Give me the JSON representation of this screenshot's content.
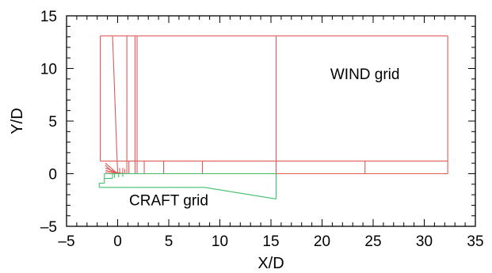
{
  "figure": {
    "xlabel": "X/D",
    "ylabel": "Y/D",
    "xlim": [
      -5,
      35
    ],
    "ylim": [
      -5,
      15
    ],
    "x_major_ticks": [
      -5,
      0,
      5,
      10,
      15,
      20,
      25,
      30,
      35
    ],
    "y_major_ticks": [
      -5,
      0,
      5,
      10,
      15
    ],
    "x_minor_step": 1,
    "y_minor_step": 1,
    "x_tick_labels": [
      "–5",
      "0",
      "5",
      "10",
      "15",
      "20",
      "25",
      "30",
      "35"
    ],
    "y_tick_labels": [
      "–5",
      "0",
      "5",
      "10",
      "15"
    ],
    "grid": false,
    "annotations": [
      {
        "text": "WIND grid",
        "x": 24.2,
        "y": 9.0,
        "color": "#000000"
      },
      {
        "text": "CRAFT grid",
        "x": 5.0,
        "y": -3.0,
        "color": "#000000"
      }
    ],
    "wind_grid": {
      "color": "#e05a5a",
      "segments": [
        [
          [
            -1.7,
            1.2
          ],
          [
            -1.7,
            13.1
          ]
        ],
        [
          [
            -1.7,
            13.1
          ],
          [
            32.3,
            13.1
          ]
        ],
        [
          [
            32.3,
            13.1
          ],
          [
            32.3,
            0
          ]
        ],
        [
          [
            -1.7,
            1.2
          ],
          [
            32.3,
            1.2
          ]
        ],
        [
          [
            -1.2,
            0
          ],
          [
            32.3,
            0
          ]
        ],
        [
          [
            15.5,
            13.1
          ],
          [
            15.5,
            0
          ]
        ],
        [
          [
            24.2,
            1.2
          ],
          [
            24.2,
            0
          ]
        ],
        [
          [
            8.3,
            1.2
          ],
          [
            8.3,
            0
          ]
        ],
        [
          [
            4.5,
            1.2
          ],
          [
            4.5,
            0
          ]
        ],
        [
          [
            2.6,
            1.2
          ],
          [
            2.6,
            0
          ]
        ],
        [
          [
            1.9,
            13.1
          ],
          [
            1.9,
            0
          ]
        ],
        [
          [
            1.7,
            13.1
          ],
          [
            1.7,
            0
          ]
        ],
        [
          [
            0.9,
            13.1
          ],
          [
            0.9,
            0
          ]
        ],
        [
          [
            1.1,
            1.2
          ],
          [
            1.1,
            0
          ]
        ],
        [
          [
            -0.5,
            13.1
          ],
          [
            0,
            0
          ]
        ],
        [
          [
            -1.2,
            1.0
          ],
          [
            0,
            0
          ]
        ],
        [
          [
            -1.2,
            0.8
          ],
          [
            -0.3,
            0
          ]
        ],
        [
          [
            -1.2,
            0.55
          ],
          [
            0.2,
            0
          ]
        ],
        [
          [
            -1.2,
            0.3
          ],
          [
            0.6,
            0
          ]
        ],
        [
          [
            -1.2,
            0.15
          ],
          [
            0.8,
            0
          ]
        ],
        [
          [
            0.2,
            0.55
          ],
          [
            0.2,
            0
          ]
        ],
        [
          [
            0.5,
            0.55
          ],
          [
            0.5,
            0
          ]
        ],
        [
          [
            0.7,
            0.45
          ],
          [
            0.7,
            0
          ]
        ]
      ]
    },
    "craft_grid": {
      "color": "#3fbf6a",
      "segments": [
        [
          [
            -1.3,
            0
          ],
          [
            15.5,
            0
          ]
        ],
        [
          [
            -1.3,
            0
          ],
          [
            -1.3,
            -0.9
          ]
        ],
        [
          [
            -1.8,
            -0.9
          ],
          [
            -1.3,
            -0.9
          ]
        ],
        [
          [
            -1.8,
            -0.9
          ],
          [
            -1.8,
            -1.3
          ]
        ],
        [
          [
            -1.8,
            -1.3
          ],
          [
            8.5,
            -1.3
          ]
        ],
        [
          [
            8.5,
            -1.3
          ],
          [
            15.5,
            -2.4
          ]
        ],
        [
          [
            15.5,
            0
          ],
          [
            15.5,
            -2.4
          ]
        ],
        [
          [
            -1.3,
            -0.45
          ],
          [
            -0.5,
            -0.45
          ]
        ],
        [
          [
            -0.5,
            0
          ],
          [
            -0.5,
            -0.45
          ]
        ],
        [
          [
            -0.3,
            0
          ],
          [
            -0.3,
            -0.4
          ]
        ],
        [
          [
            0.1,
            0
          ],
          [
            0.1,
            -0.35
          ]
        ],
        [
          [
            0.5,
            0
          ],
          [
            0.5,
            -0.3
          ]
        ]
      ]
    }
  }
}
